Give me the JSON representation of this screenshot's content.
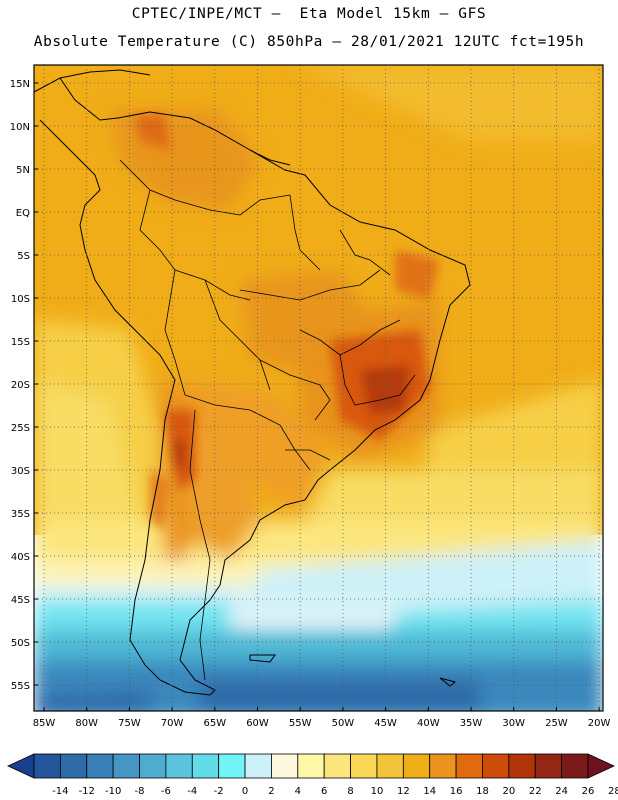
{
  "header": {
    "line1": "CPTEC/INPE/MCT –  Eta Model 15km – GFS",
    "line2": "Absolute Temperature (C) 850hPa – 28/01/2021 12UTC fct=195h"
  },
  "map": {
    "lat_labels": [
      "15N",
      "10N",
      "5N",
      "EQ",
      "5S",
      "10S",
      "15S",
      "20S",
      "25S",
      "30S",
      "35S",
      "40S",
      "45S",
      "50S",
      "55S"
    ],
    "lon_labels": [
      "85W",
      "80W",
      "75W",
      "70W",
      "65W",
      "60W",
      "55W",
      "50W",
      "45W",
      "40W",
      "35W",
      "30W",
      "25W",
      "20W"
    ],
    "gridlines": "dotted"
  },
  "colorbar": {
    "labels": [
      "-14",
      "-12",
      "-10",
      "-8",
      "-6",
      "-4",
      "-2",
      "0",
      "2",
      "4",
      "6",
      "8",
      "10",
      "12",
      "14",
      "16",
      "18",
      "20",
      "22",
      "24",
      "26",
      "28"
    ],
    "colors": [
      "#1b3f8f",
      "#24559d",
      "#2f6aa9",
      "#3a80b6",
      "#4596c4",
      "#4fabcf",
      "#5bc3dd",
      "#64dbe8",
      "#72f4f7",
      "#cdf1f8",
      "#fef8df",
      "#fdf7a8",
      "#fbe67e",
      "#f8d856",
      "#f3c43a",
      "#efad18",
      "#ea931d",
      "#e26a0e",
      "#cf4b0a",
      "#b23509",
      "#932615",
      "#7c1a1a",
      "#70111f"
    ]
  }
}
